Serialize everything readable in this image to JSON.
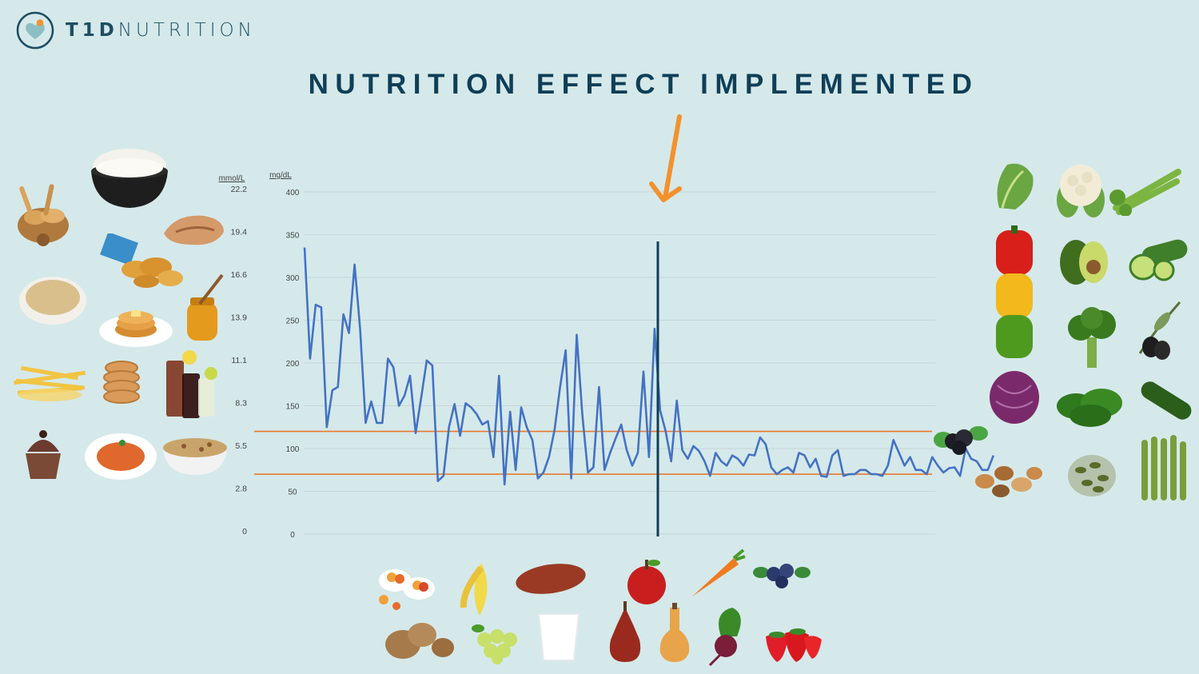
{
  "brand": {
    "mark": "T1D",
    "name": "NUTRITION"
  },
  "title": "NUTRITION EFFECT IMPLEMENTED",
  "colors": {
    "background": "#d5e9ea",
    "line": "#4472c4",
    "target_range": "#e8792f",
    "marker": "#0f3f58",
    "arrow": "#f3912c",
    "grid": "#c7d4d6"
  },
  "chart_data": {
    "type": "line",
    "title": "",
    "ylabel_left": "mmol/L",
    "ylabel_right": "mg/dL",
    "ylim": [
      0,
      400
    ],
    "yticks_mgdl": [
      0,
      50,
      100,
      150,
      200,
      250,
      300,
      350,
      400
    ],
    "yticks_mmol": [
      "0",
      "2.8",
      "5.5",
      "8.3",
      "11.1",
      "13.9",
      "16.6",
      "19.4",
      "22.2"
    ],
    "grid": true,
    "target_range": [
      70,
      120
    ],
    "intervention_index": 60,
    "intervention_label": "NUTRITION EFFECT IMPLEMENTED",
    "series": [
      {
        "values": [
          335,
          205,
          268,
          265,
          125,
          168,
          172,
          257,
          235,
          315,
          240,
          130,
          155,
          130,
          130,
          205,
          195,
          150,
          162,
          185,
          118,
          160,
          203,
          197,
          62,
          68,
          125,
          152,
          115,
          153,
          148,
          140,
          128,
          132,
          90,
          185,
          58,
          143,
          75,
          148,
          125,
          110,
          65,
          72,
          90,
          122,
          172,
          215,
          65,
          233,
          140,
          72,
          78,
          172,
          75,
          95,
          112,
          128,
          98,
          80,
          95,
          190,
          90,
          240,
          145,
          120,
          85,
          156,
          98,
          88,
          103
        ]
      },
      {
        "values": [
          97,
          85,
          68,
          95,
          85,
          80,
          92,
          88,
          80,
          93,
          92,
          113,
          105,
          78,
          70,
          75,
          78,
          72,
          95,
          92,
          78,
          88,
          68,
          67,
          92,
          98,
          68,
          70,
          70,
          75,
          75,
          70,
          70,
          68,
          80,
          110,
          95,
          80,
          90,
          75,
          75,
          70,
          90,
          80,
          72,
          77,
          78,
          68,
          100,
          88,
          85,
          75,
          75,
          92
        ]
      }
    ]
  },
  "foods": {
    "left": [
      "bread-basket",
      "rice-bowl",
      "pastry",
      "chips",
      "oatmeal",
      "pancakes",
      "honey",
      "fries",
      "donuts",
      "soda",
      "cupcake",
      "pasta",
      "granola"
    ],
    "right": [
      "lettuce",
      "cauliflower",
      "celery",
      "bell-peppers",
      "avocado",
      "zucchini",
      "broccoli",
      "olives",
      "red-cabbage",
      "spinach",
      "cucumber",
      "blackberries",
      "mixed-nuts",
      "pumpkin-seeds",
      "asparagus"
    ],
    "bottom": [
      "dried-fruit",
      "banana",
      "sweet-potato",
      "apple",
      "carrot",
      "blueberries",
      "potatoes",
      "grapes",
      "milk",
      "pear",
      "butternut-squash",
      "beet",
      "strawberries"
    ]
  }
}
